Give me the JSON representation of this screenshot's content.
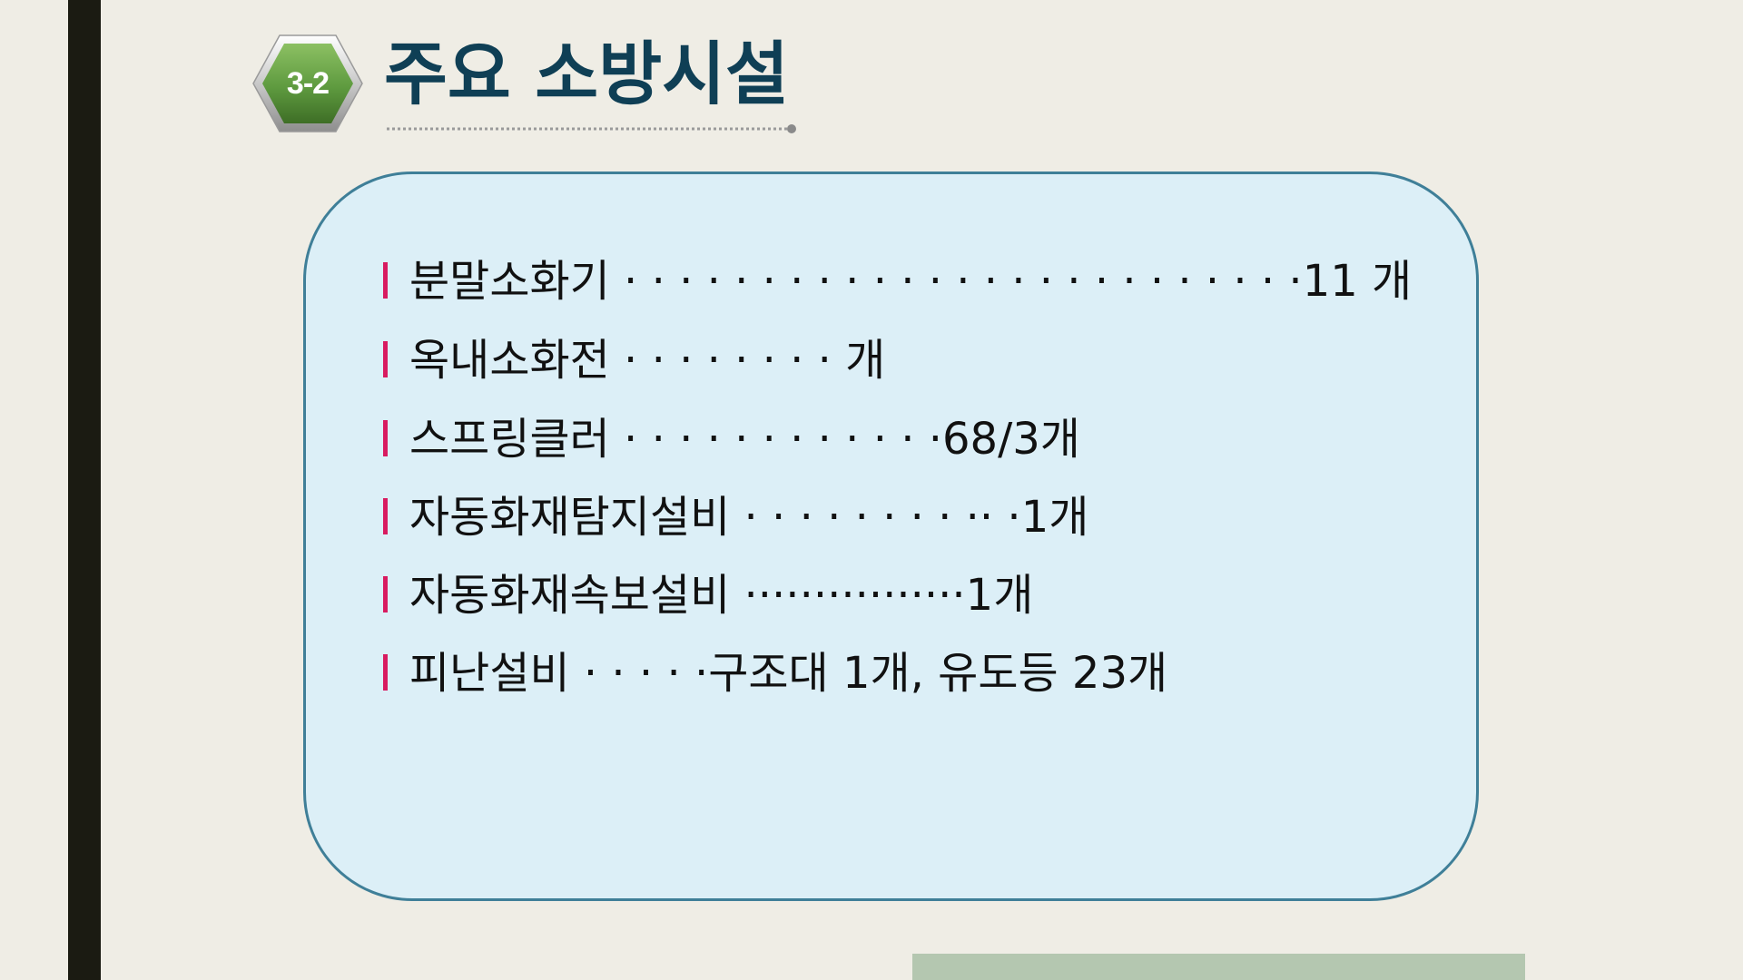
{
  "header": {
    "badge": "3-2",
    "title": "주요 소방시설"
  },
  "colors": {
    "background": "#efede5",
    "left_bar": "#1b1b12",
    "title": "#0f3f55",
    "box_fill": "#dceff7",
    "box_border": "#3f7f98",
    "marker": "#d81b60",
    "badge_green": "#5e9a3f",
    "bottom_strip": "#b4c7b0"
  },
  "items": [
    {
      "text": "분말소화기 · · · · · · · · · · · · · · · · · · · ·  · · · · ·11 개"
    },
    {
      "text": "옥내소화전 · · · · · · · · 개"
    },
    {
      "text": "스프링클러 · · · · · · · · · · · ·68/3개"
    },
    {
      "text": "자동화재탐지설비 · · · · · · · · ·· ·1개"
    },
    {
      "text": "자동화재속보설비 ················1개"
    },
    {
      "text": "피난설비 · · · · ·구조대 1개, 유도등 23개"
    }
  ]
}
